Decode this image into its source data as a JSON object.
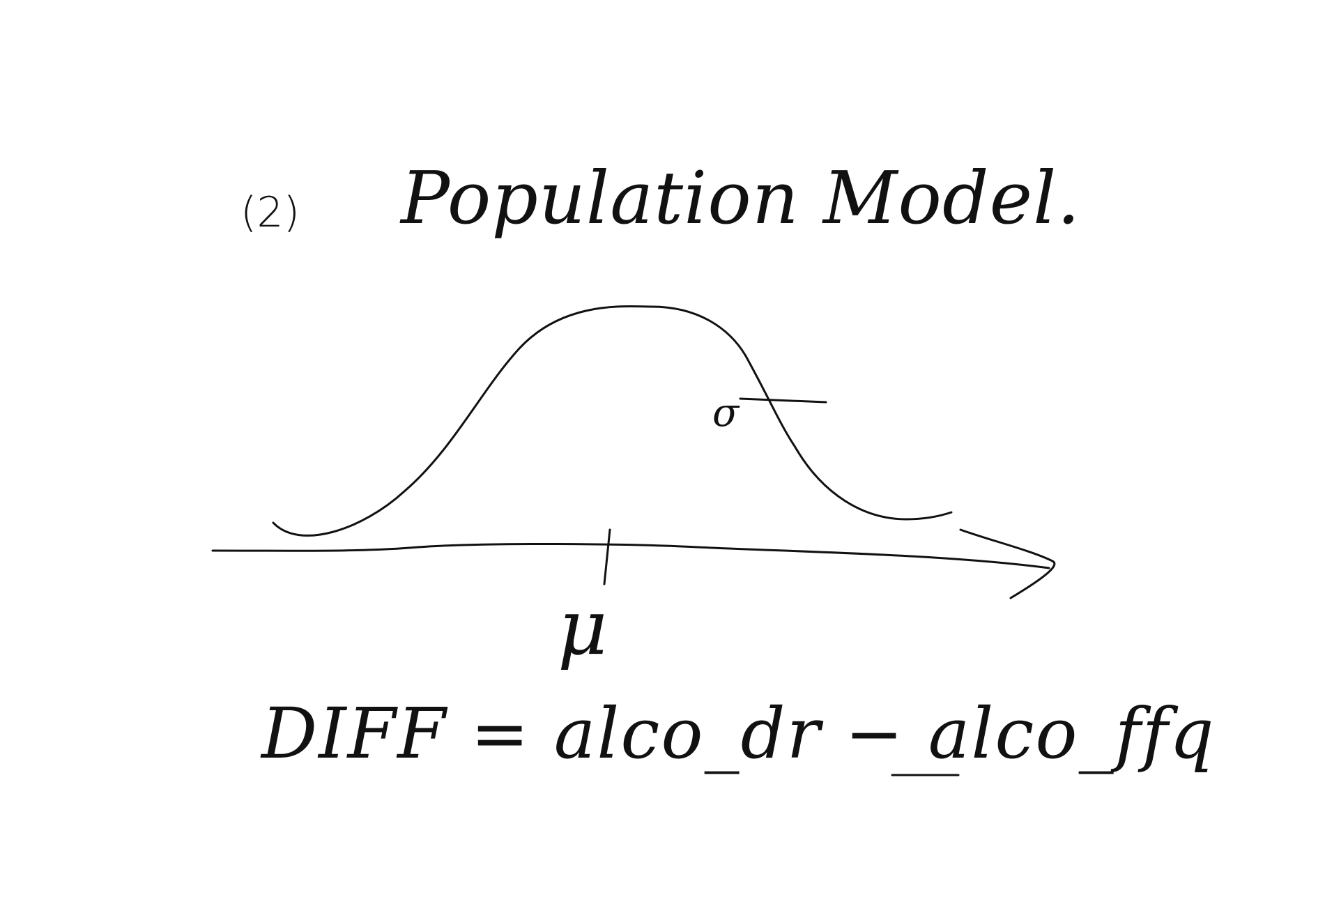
{
  "diagram": {
    "section_label": "(2)",
    "title": "Population Model.",
    "mean_label": "μ",
    "sd_label": "σ",
    "equation": "DIFF = alco_dr − alco_ffq"
  },
  "colors": {
    "ink": "#111111",
    "paper": "#ffffff"
  }
}
